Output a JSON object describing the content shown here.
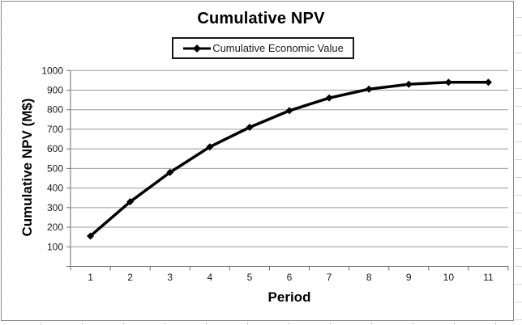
{
  "window": {
    "background": "#ffffff"
  },
  "colors": {
    "line": "#000000",
    "grid": "#9b9b9b",
    "axis": "#6f6f6f",
    "tick_text": "#1a1a1a",
    "frame_border": "#8a8a8a",
    "legend_border": "#1a1a1a"
  },
  "chart_data": {
    "type": "line",
    "title": "Cumulative NPV",
    "xlabel": "Period",
    "ylabel": "Cumulative NPV (M$)",
    "categories": [
      1,
      2,
      3,
      4,
      5,
      6,
      7,
      8,
      9,
      10,
      11
    ],
    "series": [
      {
        "name": "Cumulative Economic Value",
        "values": [
          155,
          330,
          480,
          610,
          710,
          795,
          860,
          905,
          930,
          940,
          940
        ]
      }
    ],
    "ylim": [
      0,
      1000
    ],
    "ytick_step": 100,
    "ytick_labels": [
      "100",
      "200",
      "300",
      "400",
      "500",
      "600",
      "700",
      "800",
      "900",
      "1000"
    ],
    "zero_tick_labeled": false,
    "grid": "horizontal-major",
    "legend_position": "top-center",
    "marker": "diamond",
    "line_width": 3.5
  }
}
